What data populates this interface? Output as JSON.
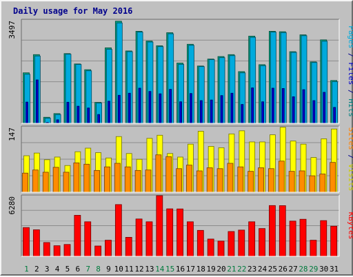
{
  "chart_data": {
    "title": "Daily usage for May 2016",
    "days": [
      "1",
      "2",
      "3",
      "4",
      "5",
      "6",
      "7",
      "8",
      "9",
      "10",
      "11",
      "12",
      "13",
      "14",
      "15",
      "16",
      "17",
      "18",
      "19",
      "20",
      "21",
      "22",
      "23",
      "24",
      "25",
      "26",
      "27",
      "28",
      "29",
      "30",
      "31"
    ],
    "weekend_days": [
      "1",
      "7",
      "8",
      "14",
      "15",
      "21",
      "22",
      "28",
      "29"
    ],
    "panels": [
      {
        "type": "bar",
        "name": "hits-files-pages",
        "max_label": "3497",
        "ymax": 3497,
        "side_label": [
          {
            "text": "Pages",
            "color": "#00aadd"
          },
          {
            "text": " / ",
            "color": "#00008b"
          },
          {
            "text": "Files",
            "color": "#0000cc"
          },
          {
            "text": " / ",
            "color": "#00008b"
          },
          {
            "text": "Hits",
            "color": "#008080"
          }
        ],
        "series": [
          {
            "name": "Hits",
            "color": "#00a080",
            "values": [
              1710,
              2325,
              205,
              330,
              2360,
              2010,
              1815,
              710,
              2555,
              3456,
              2450,
              3115,
              2785,
              2625,
              3067,
              2040,
              2675,
              1940,
              2175,
              2260,
              2325,
              1750,
              2950,
              1985,
              3115,
              3100,
              2425,
              2995,
              2080,
              2825,
              1450
            ]
          },
          {
            "name": "Files",
            "color": "#00aadd",
            "values": [
              1660,
              2278,
              175,
              296,
              2338,
              1992,
              1778,
              684,
              2505,
              3398,
              2425,
              3087,
              2750,
              2595,
              3030,
              1995,
              2640,
              1920,
              2155,
              2222,
              2290,
              1708,
              2910,
              1950,
              3087,
              3070,
              2400,
              2965,
              2058,
              2778,
              1410
            ]
          },
          {
            "name": "Pages",
            "color": "#0000cc",
            "values": [
              720,
              1470,
              30,
              120,
              715,
              580,
              520,
              300,
              750,
              950,
              1020,
              1190,
              1080,
              1000,
              1150,
              730,
              1010,
              770,
              790,
              940,
              1020,
              640,
              1200,
              730,
              1190,
              1180,
              900,
              1140,
              770,
              1050,
              540
            ]
          }
        ]
      },
      {
        "type": "bar",
        "name": "visits-sites",
        "max_label": "147",
        "ymax": 147,
        "side_label": [
          {
            "text": "Sites",
            "color": "#ff8000"
          },
          {
            "text": " / ",
            "color": "#00008b"
          },
          {
            "text": "Visits",
            "color": "#cccc00"
          }
        ],
        "series": [
          {
            "name": "Visits",
            "color": "#ffff00",
            "values": [
              82,
              88,
              73,
              79,
              60,
              91,
              99,
              89,
              77,
              125,
              87,
              74,
              121,
              128,
              87,
              79,
              108,
              137,
              103,
              100,
              131,
              138,
              113,
              113,
              129,
              146,
              115,
              108,
              78,
              120,
              142
            ]
          },
          {
            "name": "Sites",
            "color": "#ff8c00",
            "values": [
              43,
              50,
              45,
              56,
              45,
              66,
              63,
              49,
              57,
              65,
              57,
              49,
              50,
              84,
              80,
              53,
              61,
              48,
              55,
              53,
              65,
              57,
              47,
              55,
              53,
              70,
              47,
              48,
              37,
              41,
              67
            ]
          }
        ]
      },
      {
        "type": "bar",
        "name": "kbytes",
        "max_label": "6280",
        "ymax": 6280,
        "side_label": [
          {
            "text": "KBytes",
            "color": "#ff0000"
          }
        ],
        "series": [
          {
            "name": "KBytes",
            "color": "#ff0000",
            "values": [
              2980,
              2750,
              1430,
              1100,
              1230,
              4250,
              3580,
              1070,
              1670,
              5360,
              1970,
              3870,
              3580,
              6280,
              4920,
              4910,
              3580,
              2690,
              1790,
              1580,
              2570,
              2720,
              3580,
              2880,
              5260,
              5250,
              3650,
              3840,
              1670,
              3700,
              3120
            ]
          }
        ]
      }
    ]
  }
}
